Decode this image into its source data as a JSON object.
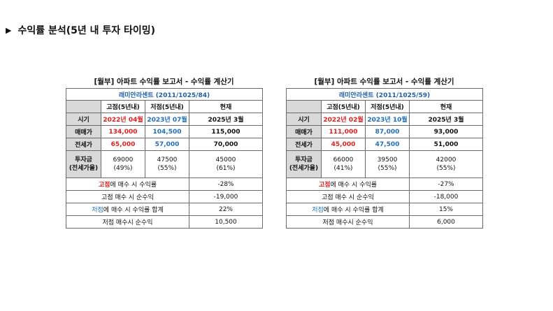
{
  "heading": {
    "text": "수익률 분석(5년 내 투자 타이밍)"
  },
  "reports": [
    {
      "title": "[월부] 아파트 수익률 보고서 - 수익률 계산기",
      "complex": "래미안라센트 (2011/1025/84)",
      "col_headers": [
        "고점(5년내)",
        "저점(5년내)",
        "현재"
      ],
      "period_label": "시기",
      "period": [
        "2022년 04월",
        "2023년 07월",
        "2025년 3월"
      ],
      "price_label": "매매가",
      "price": [
        "134,000",
        "104,500",
        "115,000"
      ],
      "jeonse_label": "전세가",
      "jeonse": [
        "65,000",
        "57,000",
        "70,000"
      ],
      "invest_label": [
        "투자금",
        "(전세가율)"
      ],
      "invest": [
        [
          "69000",
          "(49%)"
        ],
        [
          "47500",
          "(55%)"
        ],
        [
          "45000",
          "(61%)"
        ]
      ],
      "summary": [
        {
          "prefix": "고점",
          "rest": "에 매수 시 수익률",
          "value": "-28%"
        },
        {
          "prefix": "",
          "rest": "고점 매수 시 순수익",
          "value": "-19,000"
        },
        {
          "prefix": "저점",
          "rest": "에 매수 시 수익률 합계",
          "value": "22%"
        },
        {
          "prefix": "",
          "rest": "저점 매수시 순수익",
          "value": "10,500"
        }
      ]
    },
    {
      "title": "[월부] 아파트 수익률 보고서 - 수익률 계산기",
      "complex": "래미안라센트 (2011/1025/59)",
      "col_headers": [
        "고점(5년내)",
        "저점(5년내)",
        "현재"
      ],
      "period_label": "시기",
      "period": [
        "2022년 02월",
        "2023년 10월",
        "2025년 3월"
      ],
      "price_label": "매매가",
      "price": [
        "111,000",
        "87,000",
        "93,000"
      ],
      "jeonse_label": "전세가",
      "jeonse": [
        "45,000",
        "47,500",
        "51,000"
      ],
      "invest_label": [
        "투자금",
        "(전세가율)"
      ],
      "invest": [
        [
          "66000",
          "(41%)"
        ],
        [
          "39500",
          "(55%)"
        ],
        [
          "42000",
          "(55%)"
        ]
      ],
      "summary": [
        {
          "prefix": "고점",
          "rest": "에 매수 시 수익률",
          "value": "-27%"
        },
        {
          "prefix": "",
          "rest": "고점 매수 시 순수익",
          "value": "-18,000"
        },
        {
          "prefix": "저점",
          "rest": "에 매수 시 수익률 합계",
          "value": "15%"
        },
        {
          "prefix": "",
          "rest": "저점 매수시 순수익",
          "value": "6,000"
        }
      ]
    }
  ],
  "colors": {
    "high": "#e02020",
    "low": "#1f6fb8",
    "label_bg": "#d9d9d9"
  }
}
